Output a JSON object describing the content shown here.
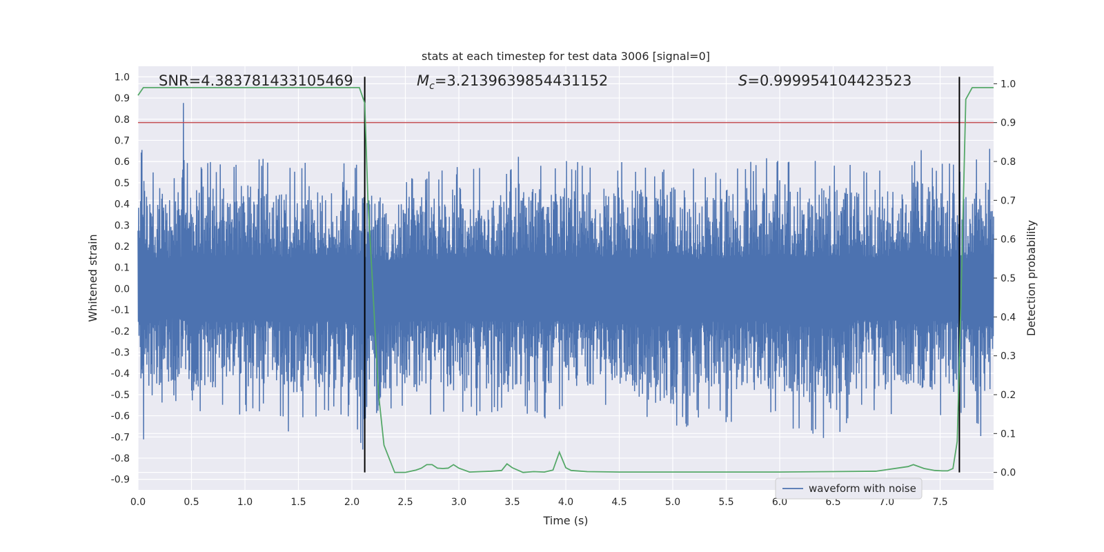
{
  "chart_data": {
    "type": "line",
    "title": "stats at each timestep for test data 3006 [signal=0]",
    "xlabel": "Time (s)",
    "ylabel": "Whitened strain",
    "y2label": "Detection probability",
    "xlim": [
      0.0,
      8.0
    ],
    "ylim": [
      -0.95,
      1.05
    ],
    "y2lim": [
      -0.045,
      1.045
    ],
    "x_ticks": [
      "0.0",
      "0.5",
      "1.0",
      "1.5",
      "2.0",
      "2.5",
      "3.0",
      "3.5",
      "4.0",
      "4.5",
      "5.0",
      "5.5",
      "6.0",
      "6.5",
      "7.0",
      "7.5"
    ],
    "y_ticks": [
      "-0.9",
      "-0.8",
      "-0.7",
      "-0.6",
      "-0.5",
      "-0.4",
      "-0.3",
      "-0.2",
      "-0.1",
      "0.0",
      "0.1",
      "0.2",
      "0.3",
      "0.4",
      "0.5",
      "0.6",
      "0.7",
      "0.8",
      "0.9",
      "1.0"
    ],
    "y2_ticks": [
      "0.0",
      "0.1",
      "0.2",
      "0.3",
      "0.4",
      "0.5",
      "0.6",
      "0.7",
      "0.8",
      "0.9",
      "1.0"
    ],
    "grid": true,
    "legend": {
      "position": "lower-right",
      "entries": [
        "waveform with noise"
      ]
    },
    "annotations": {
      "snr": "SNR=4.383781433105469",
      "mc_symbol": "M",
      "mc_sub": "c",
      "mc_value": "=3.2139639854431152",
      "s_symbol": "S",
      "s_value": "=0.999954104423523"
    },
    "threshold_y2": 0.9,
    "vlines_x": [
      2.12,
      7.68
    ],
    "colors": {
      "waveform": "#4c72b0",
      "probability": "#55a868",
      "threshold": "#c44e52",
      "vline": "#000000",
      "background": "#eaeaf2",
      "grid": "#ffffff"
    },
    "series": [
      {
        "name": "waveform with noise",
        "axis": "left",
        "envelope": {
          "x": [
            0.0,
            0.05,
            0.1,
            0.2,
            0.3,
            0.4,
            0.41,
            0.5,
            0.6,
            0.8,
            1.0,
            1.1,
            1.2,
            1.4,
            1.5,
            1.6,
            1.8,
            1.9,
            2.0,
            2.1,
            2.2,
            2.3,
            2.4,
            2.6,
            2.8,
            3.0,
            3.1,
            3.3,
            3.5,
            3.6,
            3.8,
            4.0,
            4.2,
            4.5,
            4.8,
            5.0,
            5.3,
            5.6,
            5.8,
            6.0,
            6.2,
            6.5,
            6.7,
            7.0,
            7.2,
            7.3,
            7.5,
            7.6,
            7.7,
            7.85,
            7.9,
            7.95,
            8.0
          ],
          "upper": [
            0.55,
            0.75,
            0.55,
            0.6,
            0.55,
            0.6,
            1.0,
            0.6,
            0.62,
            0.6,
            0.65,
            0.62,
            0.65,
            0.58,
            0.6,
            0.62,
            0.58,
            0.65,
            0.6,
            0.6,
            0.55,
            0.55,
            0.5,
            0.58,
            0.55,
            0.6,
            0.6,
            0.58,
            0.6,
            0.65,
            0.6,
            0.62,
            0.58,
            0.6,
            0.58,
            0.6,
            0.55,
            0.6,
            0.6,
            0.65,
            0.6,
            0.62,
            0.58,
            0.6,
            0.6,
            0.68,
            0.6,
            0.6,
            0.55,
            0.62,
            0.6,
            0.75,
            0.5
          ],
          "lower": [
            -0.6,
            -0.72,
            -0.65,
            -0.6,
            -0.55,
            -0.55,
            -0.55,
            -0.72,
            -0.6,
            -0.6,
            -0.6,
            -0.6,
            -0.55,
            -0.68,
            -0.6,
            -0.62,
            -0.6,
            -0.62,
            -0.6,
            -0.78,
            -0.85,
            -0.6,
            -0.6,
            -0.62,
            -0.6,
            -0.6,
            -0.62,
            -0.6,
            -0.62,
            -0.6,
            -0.62,
            -0.6,
            -0.6,
            -0.6,
            -0.68,
            -0.7,
            -0.6,
            -0.65,
            -0.6,
            -0.62,
            -0.7,
            -0.75,
            -0.6,
            -0.6,
            -0.6,
            -0.6,
            -0.6,
            -0.62,
            -0.6,
            -0.65,
            -0.8,
            -0.6,
            -0.6
          ]
        }
      },
      {
        "name": "detection probability",
        "axis": "right",
        "x": [
          0.0,
          0.05,
          0.1,
          0.5,
          1.0,
          1.5,
          2.0,
          2.07,
          2.12,
          2.15,
          2.2,
          2.25,
          2.3,
          2.4,
          2.5,
          2.6,
          2.65,
          2.7,
          2.75,
          2.8,
          2.85,
          2.9,
          2.95,
          3.0,
          3.1,
          3.2,
          3.3,
          3.4,
          3.45,
          3.5,
          3.6,
          3.7,
          3.8,
          3.88,
          3.94,
          4.0,
          4.05,
          4.2,
          4.5,
          5.0,
          5.5,
          6.0,
          6.5,
          6.9,
          7.2,
          7.25,
          7.35,
          7.45,
          7.52,
          7.57,
          7.62,
          7.66,
          7.7,
          7.74,
          7.8,
          7.9,
          8.0
        ],
        "y": [
          0.97,
          0.99,
          0.99,
          0.99,
          0.99,
          0.99,
          0.99,
          0.99,
          0.95,
          0.7,
          0.45,
          0.2,
          0.07,
          0.0,
          0.0,
          0.006,
          0.011,
          0.02,
          0.02,
          0.011,
          0.01,
          0.011,
          0.02,
          0.011,
          0.001,
          0.002,
          0.003,
          0.005,
          0.022,
          0.012,
          0.0,
          0.002,
          0.001,
          0.006,
          0.052,
          0.012,
          0.005,
          0.002,
          0.001,
          0.001,
          0.001,
          0.001,
          0.002,
          0.003,
          0.015,
          0.02,
          0.01,
          0.005,
          0.004,
          0.004,
          0.01,
          0.08,
          0.5,
          0.96,
          0.99,
          0.99,
          0.99
        ]
      }
    ]
  }
}
